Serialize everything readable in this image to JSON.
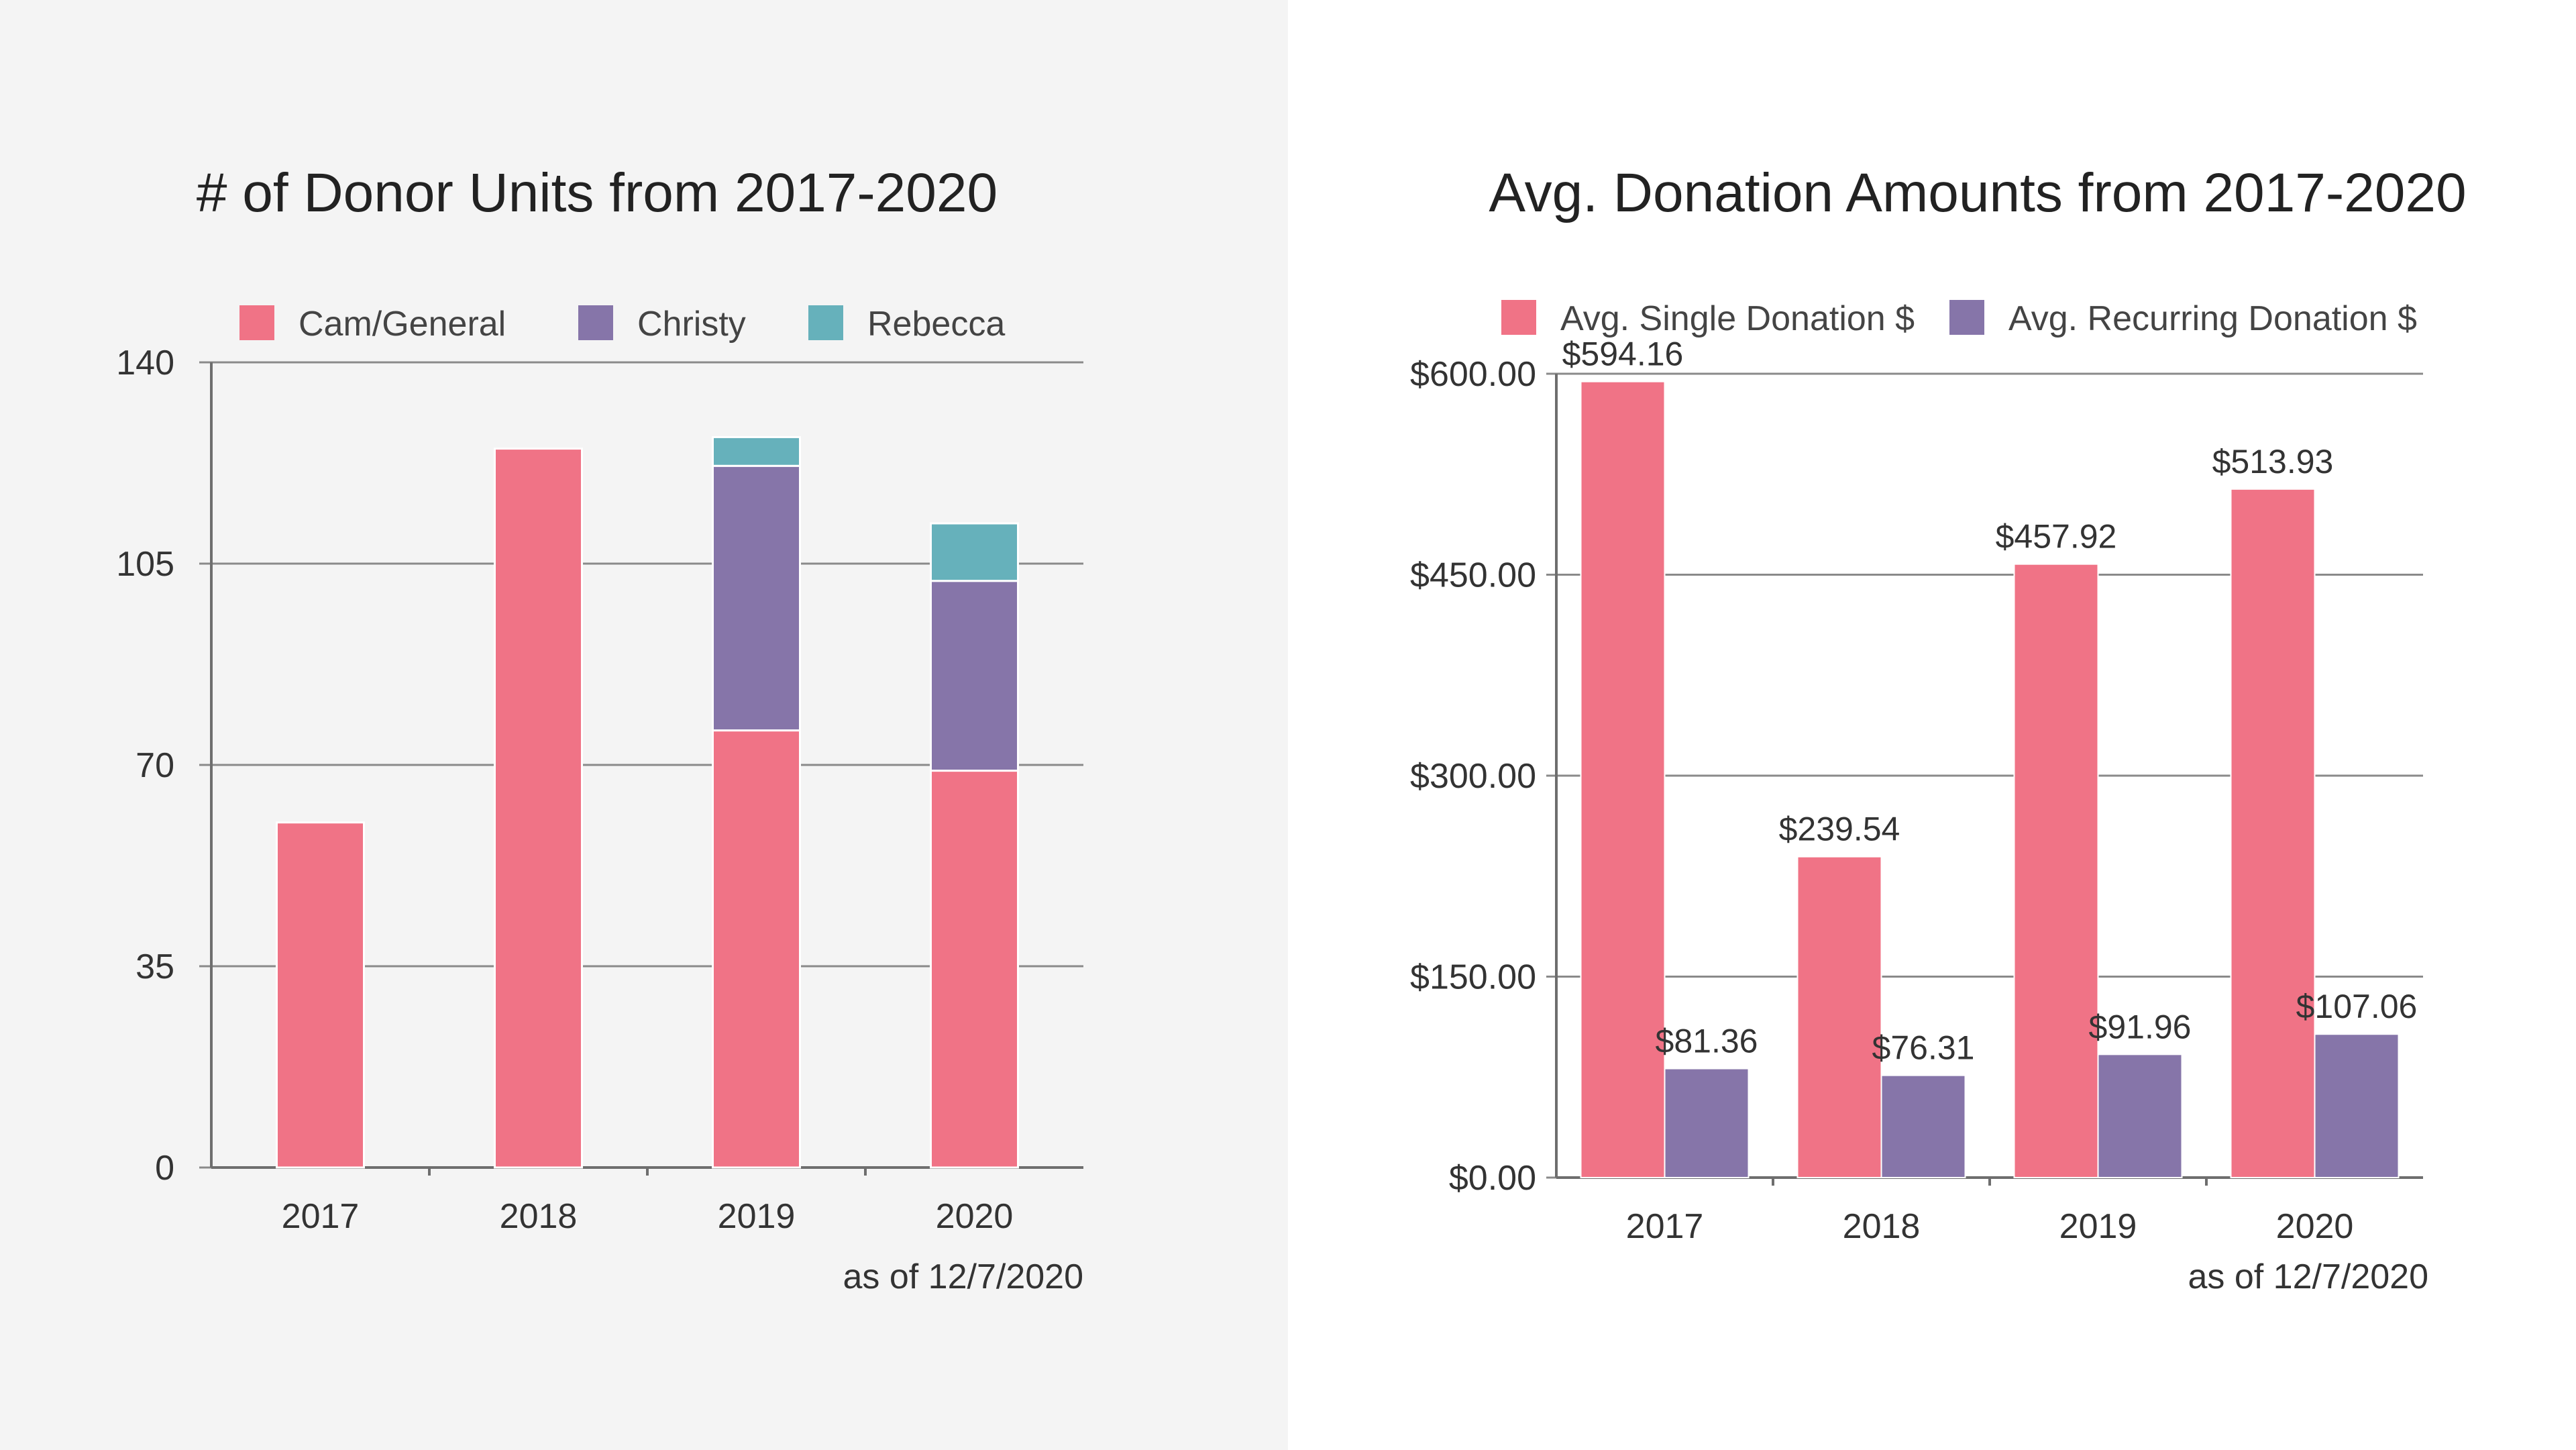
{
  "chart_data": [
    {
      "type": "bar",
      "stacked": true,
      "title": "# of Donor Units from 2017-2020",
      "categories": [
        "2017",
        "2018",
        "2019",
        "2020"
      ],
      "series": [
        {
          "name": "Cam/General",
          "color": "#f07386",
          "values": [
            60,
            125,
            76,
            69
          ]
        },
        {
          "name": "Christy",
          "color": "#8675a9",
          "values": [
            0,
            0,
            46,
            33
          ]
        },
        {
          "name": "Rebecca",
          "color": "#66b1bb",
          "values": [
            0,
            0,
            5,
            10
          ]
        }
      ],
      "ylim": [
        0,
        140
      ],
      "yticks": [
        "0",
        "35",
        "70",
        "105",
        "140"
      ],
      "grid": true,
      "legend": "top",
      "note": "as of 12/7/2020"
    },
    {
      "type": "bar",
      "title": "Avg. Donation Amounts from 2017-2020",
      "categories": [
        "2017",
        "2018",
        "2019",
        "2020"
      ],
      "series": [
        {
          "name": "Avg. Single Donation $",
          "color": "#f07386",
          "values": [
            594.16,
            239.54,
            457.92,
            513.93
          ],
          "labels": [
            "$594.16",
            "$239.54",
            "$457.92",
            "$513.93"
          ]
        },
        {
          "name": "Avg. Recurring Donation $",
          "color": "#8675a9",
          "values": [
            81.36,
            76.31,
            91.96,
            107.06
          ],
          "labels": [
            "$81.36",
            "$76.31",
            "$91.96",
            "$107.06"
          ]
        }
      ],
      "ylim": [
        0,
        600
      ],
      "yticks": [
        "$0.00",
        "$150.00",
        "$300.00",
        "$450.00",
        "$600.00"
      ],
      "grid": true,
      "legend": "top",
      "note": "as of 12/7/2020"
    }
  ]
}
